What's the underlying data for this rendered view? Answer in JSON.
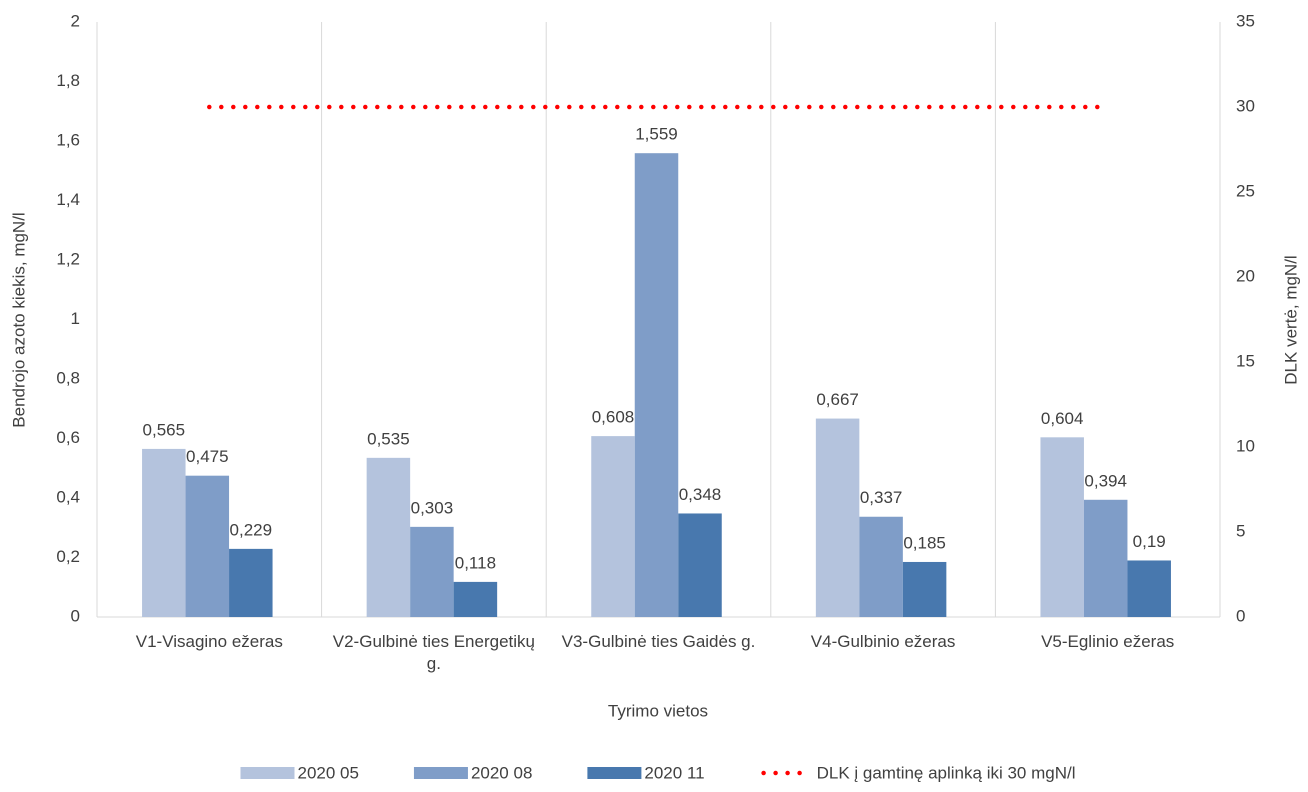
{
  "chart_data": {
    "type": "bar",
    "categories": [
      "V1-Visagino ežeras",
      "V2-Gulbinė ties Energetikų g.",
      "V3-Gulbinė ties Gaidės g.",
      "V4-Gulbinio ežeras",
      "V5-Eglinio ežeras"
    ],
    "series": [
      {
        "name": "2020 05",
        "color": "#b4c3dd",
        "values": [
          0.565,
          0.535,
          0.608,
          0.667,
          0.604
        ],
        "value_labels": [
          "0,565",
          "0,535",
          "0,608",
          "0,667",
          "0,604"
        ]
      },
      {
        "name": "2020 08",
        "color": "#7f9dc8",
        "values": [
          0.475,
          0.303,
          1.559,
          0.337,
          0.394
        ],
        "value_labels": [
          "0,475",
          "0,303",
          "1,559",
          "0,337",
          "0,394"
        ]
      },
      {
        "name": "2020 11",
        "color": "#4878ae",
        "values": [
          0.229,
          0.118,
          0.348,
          0.185,
          0.19
        ],
        "value_labels": [
          "0,229",
          "0,118",
          "0,348",
          "0,185",
          "0,19"
        ]
      },
      {
        "name": "DLK į gamtinę aplinką iki 30 mgN/l",
        "type": "line",
        "axis": "y2",
        "color": "#ff0000",
        "values": [
          30,
          30,
          30,
          30,
          30
        ]
      }
    ],
    "ylabel": "Bendrojo azoto kiekis, mgN/l",
    "y2label": "DLK vertė, mgN/l",
    "xlabel": "Tyrimo vietos",
    "ylim": [
      0,
      2
    ],
    "yticks": [
      0,
      {
        "value": 0.2,
        "label": "0,2"
      },
      {
        "value": 0.4,
        "label": "0,4"
      },
      {
        "value": 0.6,
        "label": "0,6"
      },
      {
        "value": 0.8,
        "label": "0,8"
      },
      1,
      {
        "value": 1.2,
        "label": "1,2"
      },
      {
        "value": 1.4,
        "label": "1,4"
      },
      {
        "value": 1.6,
        "label": "1,6"
      },
      {
        "value": 1.8,
        "label": "1,8"
      },
      2
    ],
    "y2lim": [
      0,
      35
    ],
    "y2ticks": [
      0,
      5,
      10,
      15,
      20,
      25,
      30,
      35
    ],
    "legend": "bottom"
  }
}
